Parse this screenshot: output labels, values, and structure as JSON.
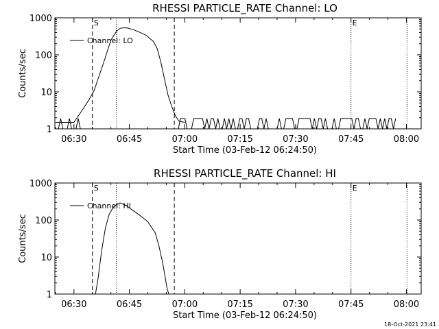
{
  "footer": {
    "timestamp": "18-Oct-2021 23:41"
  },
  "chart_data": [
    {
      "type": "line",
      "title": "RHESSI PARTICLE_RATE Channel: LO",
      "xlabel": "Start Time (03-Feb-12 06:24:50)",
      "ylabel": "Counts/sec",
      "y_scale": "log",
      "xlim": [
        "06:24:50",
        "08:04:00"
      ],
      "ylim": [
        1,
        1000
      ],
      "x_ticks": [
        "06:30",
        "06:45",
        "07:00",
        "07:15",
        "07:30",
        "07:45",
        "08:00"
      ],
      "y_ticks": [
        "1",
        "10",
        "100",
        "1000"
      ],
      "legend": {
        "entries": [
          "Channel: LO"
        ],
        "placement": "top-left"
      },
      "event_markers": [
        {
          "time": "06:35:00",
          "style": "dashed",
          "label": "S"
        },
        {
          "time": "06:41:30",
          "style": "dotted",
          "label": ""
        },
        {
          "time": "06:57:10",
          "style": "dashed",
          "label": ""
        },
        {
          "time": "07:45:00",
          "style": "dotted",
          "label": "E"
        },
        {
          "time": "08:00:10",
          "style": "dotted",
          "label": ""
        }
      ],
      "series": [
        {
          "name": "Channel: LO",
          "x": [
            "06:25:00",
            "06:30:00",
            "06:32:30",
            "06:34:00",
            "06:35:30",
            "06:36:30",
            "06:38:00",
            "06:40:00",
            "06:41:30",
            "06:42:30",
            "06:43:30",
            "06:44:30",
            "06:46:00",
            "06:47:30",
            "06:49:30",
            "06:51:30",
            "06:52:30",
            "06:53:30",
            "06:54:30",
            "06:55:30",
            "06:56:30",
            "06:57:30",
            "06:58:30",
            "07:00:00"
          ],
          "y": [
            1.5,
            1.5,
            3.5,
            6,
            11,
            22,
            60,
            250,
            430,
            520,
            540,
            530,
            480,
            420,
            340,
            230,
            150,
            65,
            22,
            8,
            4,
            2.2,
            1.6,
            1.5
          ]
        }
      ]
    },
    {
      "type": "line",
      "title": "RHESSI PARTICLE_RATE Channel: HI",
      "xlabel": "Start Time (03-Feb-12 06:24:50)",
      "ylabel": "Counts/sec",
      "y_scale": "log",
      "xlim": [
        "06:24:50",
        "08:04:00"
      ],
      "ylim": [
        1,
        1000
      ],
      "x_ticks": [
        "06:30",
        "06:45",
        "07:00",
        "07:15",
        "07:30",
        "07:45",
        "08:00"
      ],
      "y_ticks": [
        "1",
        "10",
        "100",
        "1000"
      ],
      "legend": {
        "entries": [
          "Channel: HI"
        ],
        "placement": "top-left"
      },
      "event_markers": [
        {
          "time": "06:35:00",
          "style": "dashed",
          "label": "S"
        },
        {
          "time": "06:41:30",
          "style": "dotted",
          "label": ""
        },
        {
          "time": "06:57:10",
          "style": "dashed",
          "label": ""
        },
        {
          "time": "07:45:00",
          "style": "dotted",
          "label": "E"
        },
        {
          "time": "08:00:10",
          "style": "dotted",
          "label": ""
        }
      ],
      "series": [
        {
          "name": "Channel: HI",
          "x": [
            "06:35:50",
            "06:36:30",
            "06:37:30",
            "06:38:30",
            "06:39:30",
            "06:40:30",
            "06:41:30",
            "06:42:30",
            "06:44:00",
            "06:46:00",
            "06:48:00",
            "06:50:00",
            "06:52:00",
            "06:53:00",
            "06:54:00",
            "06:54:40",
            "06:55:10",
            "06:55:40"
          ],
          "y": [
            1,
            2.5,
            15,
            60,
            140,
            210,
            260,
            290,
            250,
            180,
            130,
            90,
            45,
            20,
            7,
            3,
            1.5,
            1
          ]
        }
      ]
    }
  ]
}
